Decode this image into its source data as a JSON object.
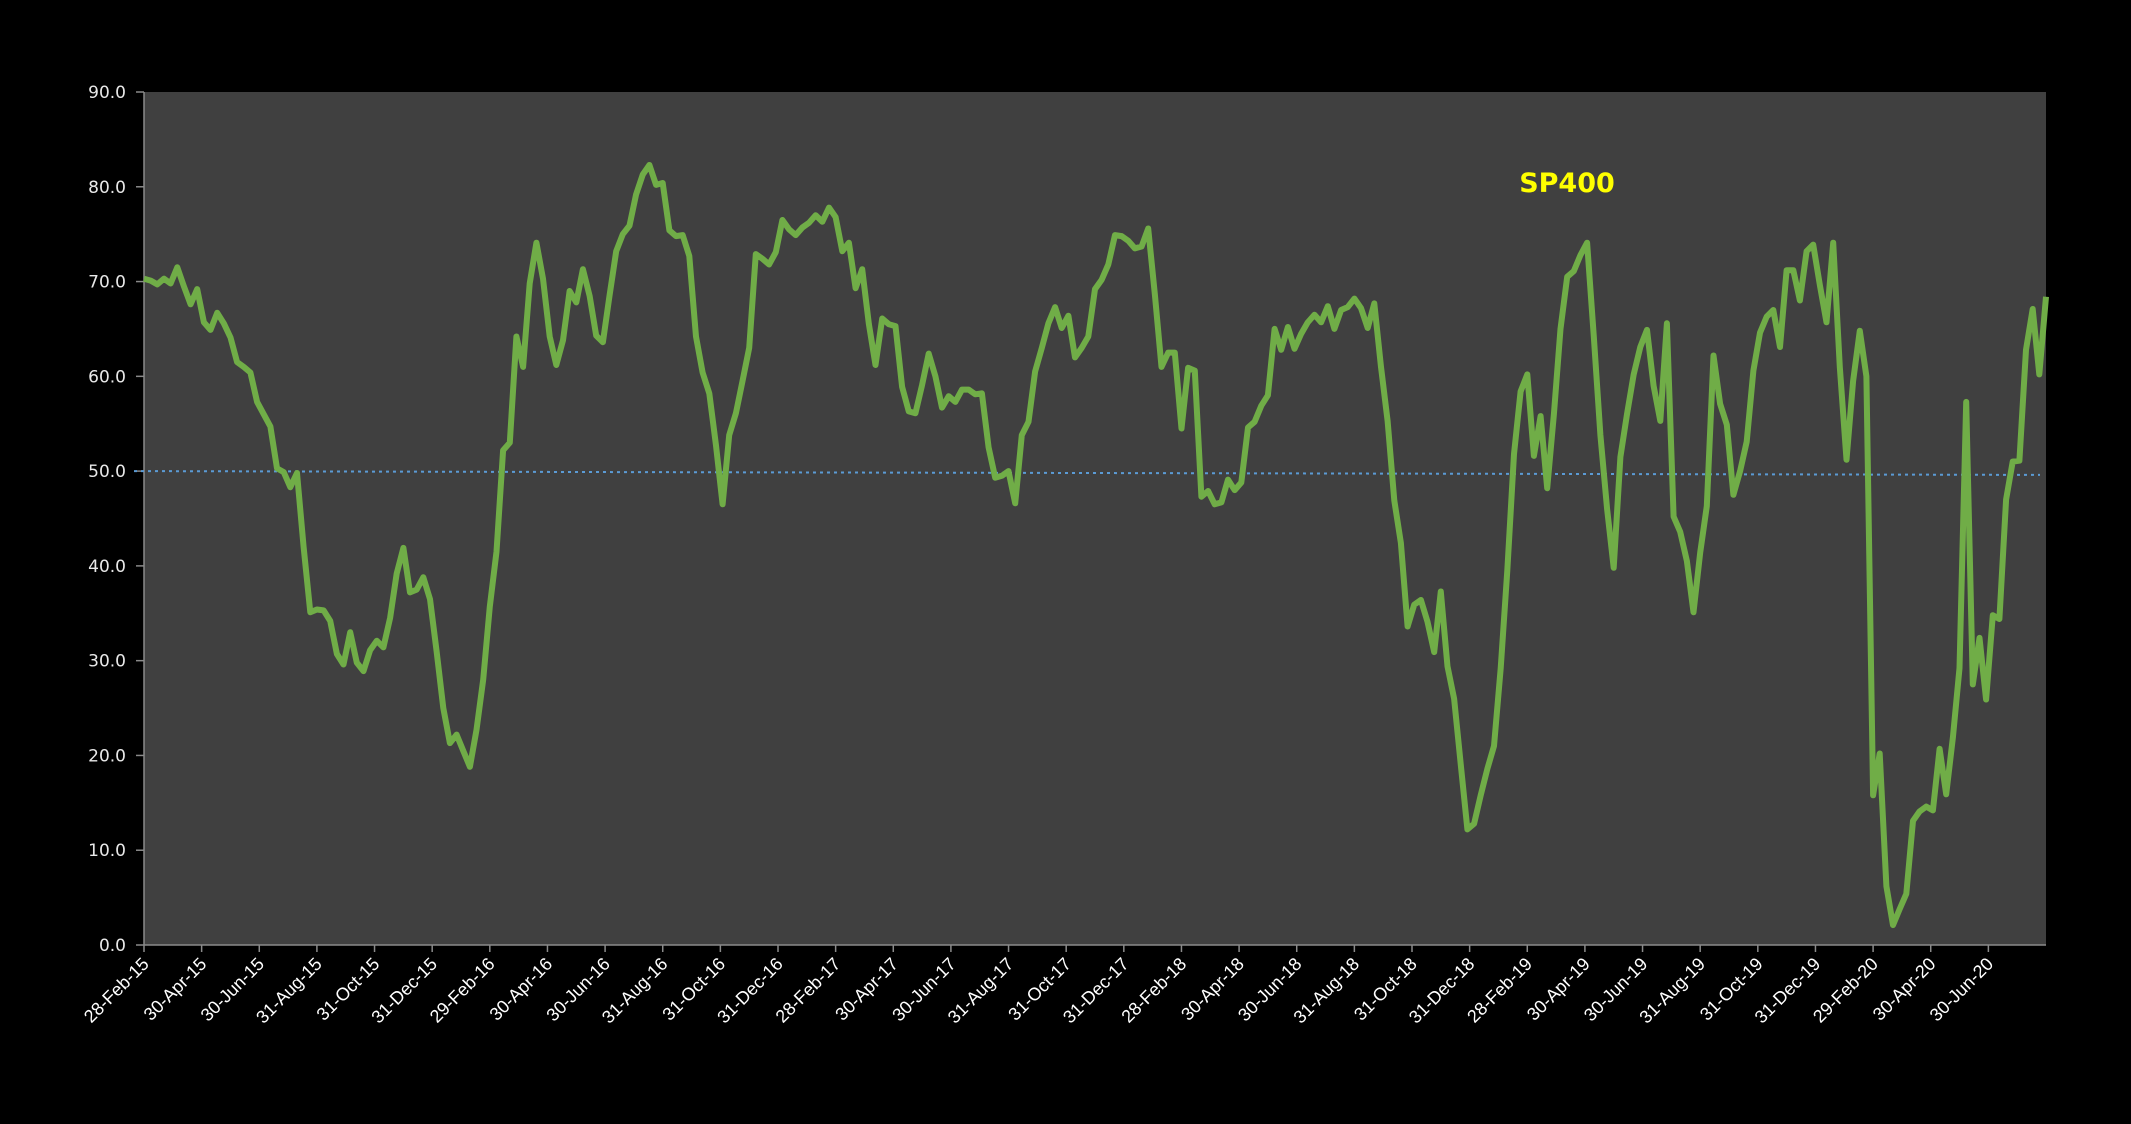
{
  "chart_data": {
    "type": "line",
    "title": "SP400",
    "xlabel": "",
    "ylabel": "",
    "ylim": [
      0,
      90
    ],
    "y_ticks": [
      "0.0",
      "10.0",
      "20.0",
      "30.0",
      "40.0",
      "50.0",
      "60.0",
      "70.0",
      "80.0",
      "90.0"
    ],
    "x_tick_labels": [
      "28-Feb-15",
      "30-Apr-15",
      "30-Jun-15",
      "31-Aug-15",
      "31-Oct-15",
      "31-Dec-15",
      "29-Feb-16",
      "30-Apr-16",
      "30-Jun-16",
      "31-Aug-16",
      "31-Oct-16",
      "31-Dec-16",
      "28-Feb-17",
      "30-Apr-17",
      "30-Jun-17",
      "31-Aug-17",
      "31-Oct-17",
      "31-Dec-17",
      "28-Feb-18",
      "30-Apr-18",
      "30-Jun-18",
      "31-Aug-18",
      "31-Oct-18",
      "31-Dec-18",
      "28-Feb-19",
      "30-Apr-19",
      "30-Jun-19",
      "31-Aug-19",
      "31-Oct-19",
      "31-Dec-19",
      "29-Feb-20",
      "30-Apr-20",
      "30-Jun-20"
    ],
    "x_range_months_from_first_tick": [
      0,
      66
    ],
    "grid": false,
    "series": [
      {
        "name": "SP400",
        "color": "#70ad47",
        "values": [
          70.3,
          70.1,
          69.7,
          70.3,
          69.8,
          71.5,
          69.5,
          67.6,
          69.2,
          65.7,
          64.9,
          66.7,
          65.6,
          64.1,
          61.5,
          61.0,
          60.4,
          57.3,
          56.0,
          54.7,
          50.3,
          49.9,
          48.3,
          49.8,
          42.0,
          35.1,
          35.4,
          35.3,
          34.2,
          30.7,
          29.6,
          33.0,
          29.8,
          28.9,
          31.1,
          32.1,
          31.4,
          34.5,
          39.2,
          41.9,
          37.2,
          37.5,
          38.8,
          36.5,
          31.0,
          25.0,
          21.3,
          22.2,
          20.5,
          18.8,
          22.7,
          28.0,
          35.7,
          41.5,
          52.2,
          53.0,
          64.2,
          61.0,
          69.8,
          74.1,
          70.3,
          64.2,
          61.2,
          63.8,
          69.0,
          67.8,
          71.3,
          68.5,
          64.3,
          63.6,
          68.5,
          73.2,
          75.0,
          75.9,
          79.2,
          81.3,
          82.3,
          80.2,
          80.4,
          75.4,
          74.8,
          74.9,
          72.7,
          64.2,
          60.4,
          58.2,
          52.8,
          46.5,
          53.8,
          56.1,
          59.5,
          63.0,
          72.9,
          72.4,
          71.8,
          73.1,
          76.5,
          75.5,
          74.9,
          75.7,
          76.2,
          77.0,
          76.3,
          77.8,
          76.8,
          73.2,
          74.1,
          69.3,
          71.3,
          65.5,
          61.2,
          66.1,
          65.5,
          65.3,
          58.9,
          56.3,
          56.1,
          59.1,
          62.4,
          60.0,
          56.7,
          57.9,
          57.3,
          58.6,
          58.6,
          58.1,
          58.2,
          52.5,
          49.3,
          49.5,
          50.0,
          46.6,
          53.8,
          55.2,
          60.5,
          63.0,
          65.6,
          67.3,
          65.1,
          66.4,
          62.0,
          63.0,
          64.2,
          69.2,
          70.2,
          71.8,
          74.9,
          74.8,
          74.3,
          73.5,
          73.7,
          75.6,
          68.6,
          61.0,
          62.5,
          62.5,
          54.5,
          60.9,
          60.6,
          47.3,
          47.9,
          46.5,
          46.7,
          49.1,
          48.0,
          48.8,
          54.6,
          55.2,
          56.9,
          58.0,
          65.0,
          62.8,
          65.2,
          62.9,
          64.5,
          65.7,
          66.5,
          65.7,
          67.4,
          65.0,
          67.0,
          67.3,
          68.2,
          67.2,
          65.1,
          67.7,
          61.0,
          55.3,
          46.9,
          42.4,
          33.6,
          35.9,
          36.4,
          34.1,
          30.9,
          37.3,
          29.4,
          26.0,
          19.0,
          12.2,
          12.8,
          15.8,
          18.6,
          21.0,
          29.2,
          39.5,
          51.8,
          58.4,
          60.2,
          51.6,
          55.8,
          48.2,
          56.0,
          65.0,
          70.5,
          71.1,
          72.8,
          74.1,
          64.2,
          53.8,
          46.0,
          39.8,
          51.5,
          56.0,
          60.2,
          63.1,
          64.9,
          59.0,
          55.3,
          65.6,
          45.2,
          43.6,
          40.5,
          35.1,
          41.4,
          46.3,
          62.2,
          57.1,
          54.9,
          47.5,
          50.0,
          53.1,
          60.6,
          64.6,
          66.3,
          67.0,
          63.1,
          71.2,
          71.2,
          68.0,
          73.2,
          73.9,
          69.6,
          65.7,
          74.1,
          61.0,
          51.2,
          59.5,
          64.8,
          60.0,
          15.8,
          20.2,
          6.2,
          2.1,
          3.8,
          5.4,
          13.1,
          14.1,
          14.6,
          14.2,
          20.7,
          15.9,
          21.9,
          29.2,
          57.3,
          27.5,
          32.4,
          25.9,
          34.8,
          34.4,
          47.0,
          51.0,
          51.1,
          62.8,
          67.1,
          60.2,
          68.4
        ]
      }
    ],
    "reference_line": {
      "name": "50 level",
      "color": "#5b9bd5",
      "style": "dotted",
      "values": [
        50.0,
        49.6
      ]
    },
    "annotations": [
      {
        "text": "SP400",
        "color": "#ffff00"
      }
    ]
  }
}
